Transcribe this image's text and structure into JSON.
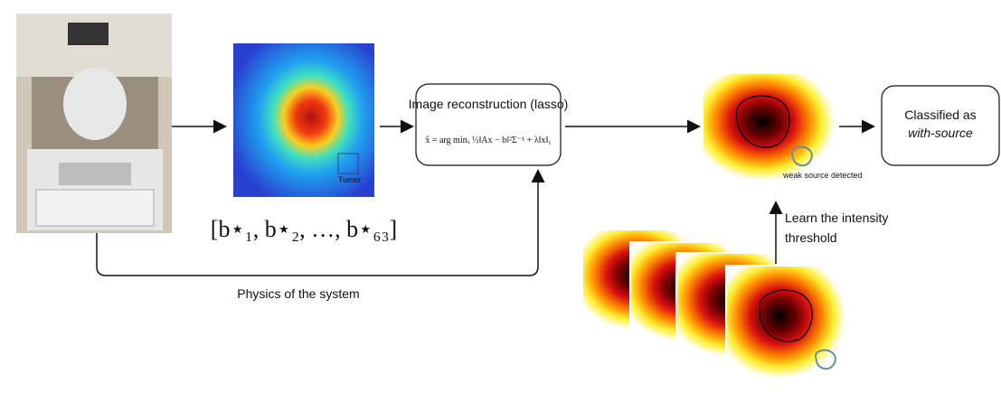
{
  "heatmap": {
    "label": "Tumor",
    "vector": "[b⋆₁, b⋆₂, …, b⋆₆₃]"
  },
  "reconstruction": {
    "title": "Image reconstruction (lasso)",
    "formula": "x̂ = arg minₓ ½‖Ax − b‖²Σ⁻¹ + λ‖x‖₁"
  },
  "detection": {
    "annotation": "weak source detected"
  },
  "classification": {
    "lines": [
      "Classified as",
      "with-source"
    ]
  },
  "training": {
    "lines": [
      "Learn the intensity",
      "threshold"
    ]
  },
  "physics": {
    "label": "Physics of the system"
  }
}
